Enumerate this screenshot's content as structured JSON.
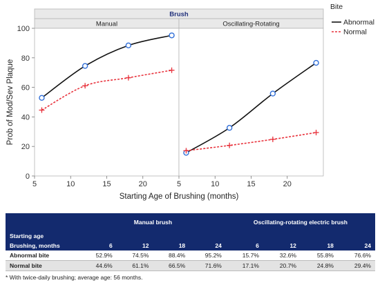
{
  "chart_data": {
    "type": "line",
    "title": "Brush",
    "panels": [
      "Manual",
      "Oscillating-Rotating"
    ],
    "xlabel": "Starting Age of Brushing (months)",
    "ylabel": "Prob of Mod/Sev Plaque",
    "ylim": [
      0,
      100
    ],
    "yticks": [
      "0",
      "20",
      "40",
      "60",
      "80",
      "100"
    ],
    "xlim": [
      5,
      25
    ],
    "xticks": [
      "5",
      "10",
      "15",
      "20"
    ],
    "legend_title": "Bite",
    "legend_position": "top-right",
    "x": [
      6,
      12,
      18,
      24
    ],
    "series": [
      {
        "name": "Abnormal",
        "color": "#111111",
        "marker": "circle",
        "line": "solid",
        "manual": [
          52.9,
          74.5,
          88.4,
          95.2
        ],
        "oscillating": [
          15.7,
          32.6,
          55.8,
          76.6
        ]
      },
      {
        "name": "Normal",
        "color": "#e8303a",
        "marker": "plus",
        "line": "dashed",
        "manual": [
          44.6,
          61.1,
          66.5,
          71.6
        ],
        "oscillating": [
          17.1,
          20.7,
          24.8,
          29.4
        ]
      }
    ]
  },
  "table": {
    "group_manual": "Manual brush",
    "group_osc": "Oscillating-rotating electric brush",
    "row_label_1": "Starting age",
    "row_label_2": "Brushing, months",
    "ages": [
      "6",
      "12",
      "18",
      "24",
      "6",
      "12",
      "18",
      "24"
    ],
    "rows": [
      {
        "label": "Abnormal bite",
        "values": [
          "52.9%",
          "74.5%",
          "88.4%",
          "95.2%",
          "15.7%",
          "32.6%",
          "55.8%",
          "76.6%"
        ]
      },
      {
        "label": "Normal bite",
        "values": [
          "44.6%",
          "61.1%",
          "66.5%",
          "71.6%",
          "17.1%",
          "20.7%",
          "24.8%",
          "29.4%"
        ]
      }
    ]
  },
  "footnote": "* With twice-daily brushing; average age: 56 months."
}
